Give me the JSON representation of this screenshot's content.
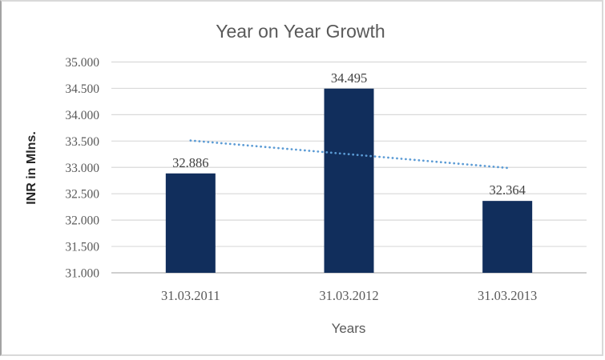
{
  "chart_data": {
    "type": "bar",
    "title": "Year on Year Growth",
    "xlabel": "Years",
    "ylabel": "INR in Mlns.",
    "categories": [
      "31.03.2011",
      "31.03.2012",
      "31.03.2013"
    ],
    "values": [
      32886,
      34495,
      32364
    ],
    "value_labels": [
      "32.886",
      "34.495",
      "32.364"
    ],
    "ylim": [
      31000,
      35000
    ],
    "ytick_step": 500,
    "yticks": [
      31000,
      31500,
      32000,
      32500,
      33000,
      33500,
      34000,
      34500,
      35000
    ],
    "ytick_labels": [
      "31.000",
      "31.500",
      "32.000",
      "32.500",
      "33.000",
      "33.500",
      "34.000",
      "34.500",
      "35.000"
    ],
    "grid": true,
    "legend": "none",
    "trendline": {
      "type": "linear",
      "style": "dotted",
      "endpoint_values": [
        33510,
        32990
      ]
    },
    "colors": {
      "bar": "#112e5c",
      "trendline": "#5b9bd5",
      "gridline": "#d9d9d9",
      "axis_line": "#bfbfbf",
      "title": "#595959",
      "axis_text": "#595959",
      "data_label": "#404040",
      "y_title": "#262626"
    }
  }
}
